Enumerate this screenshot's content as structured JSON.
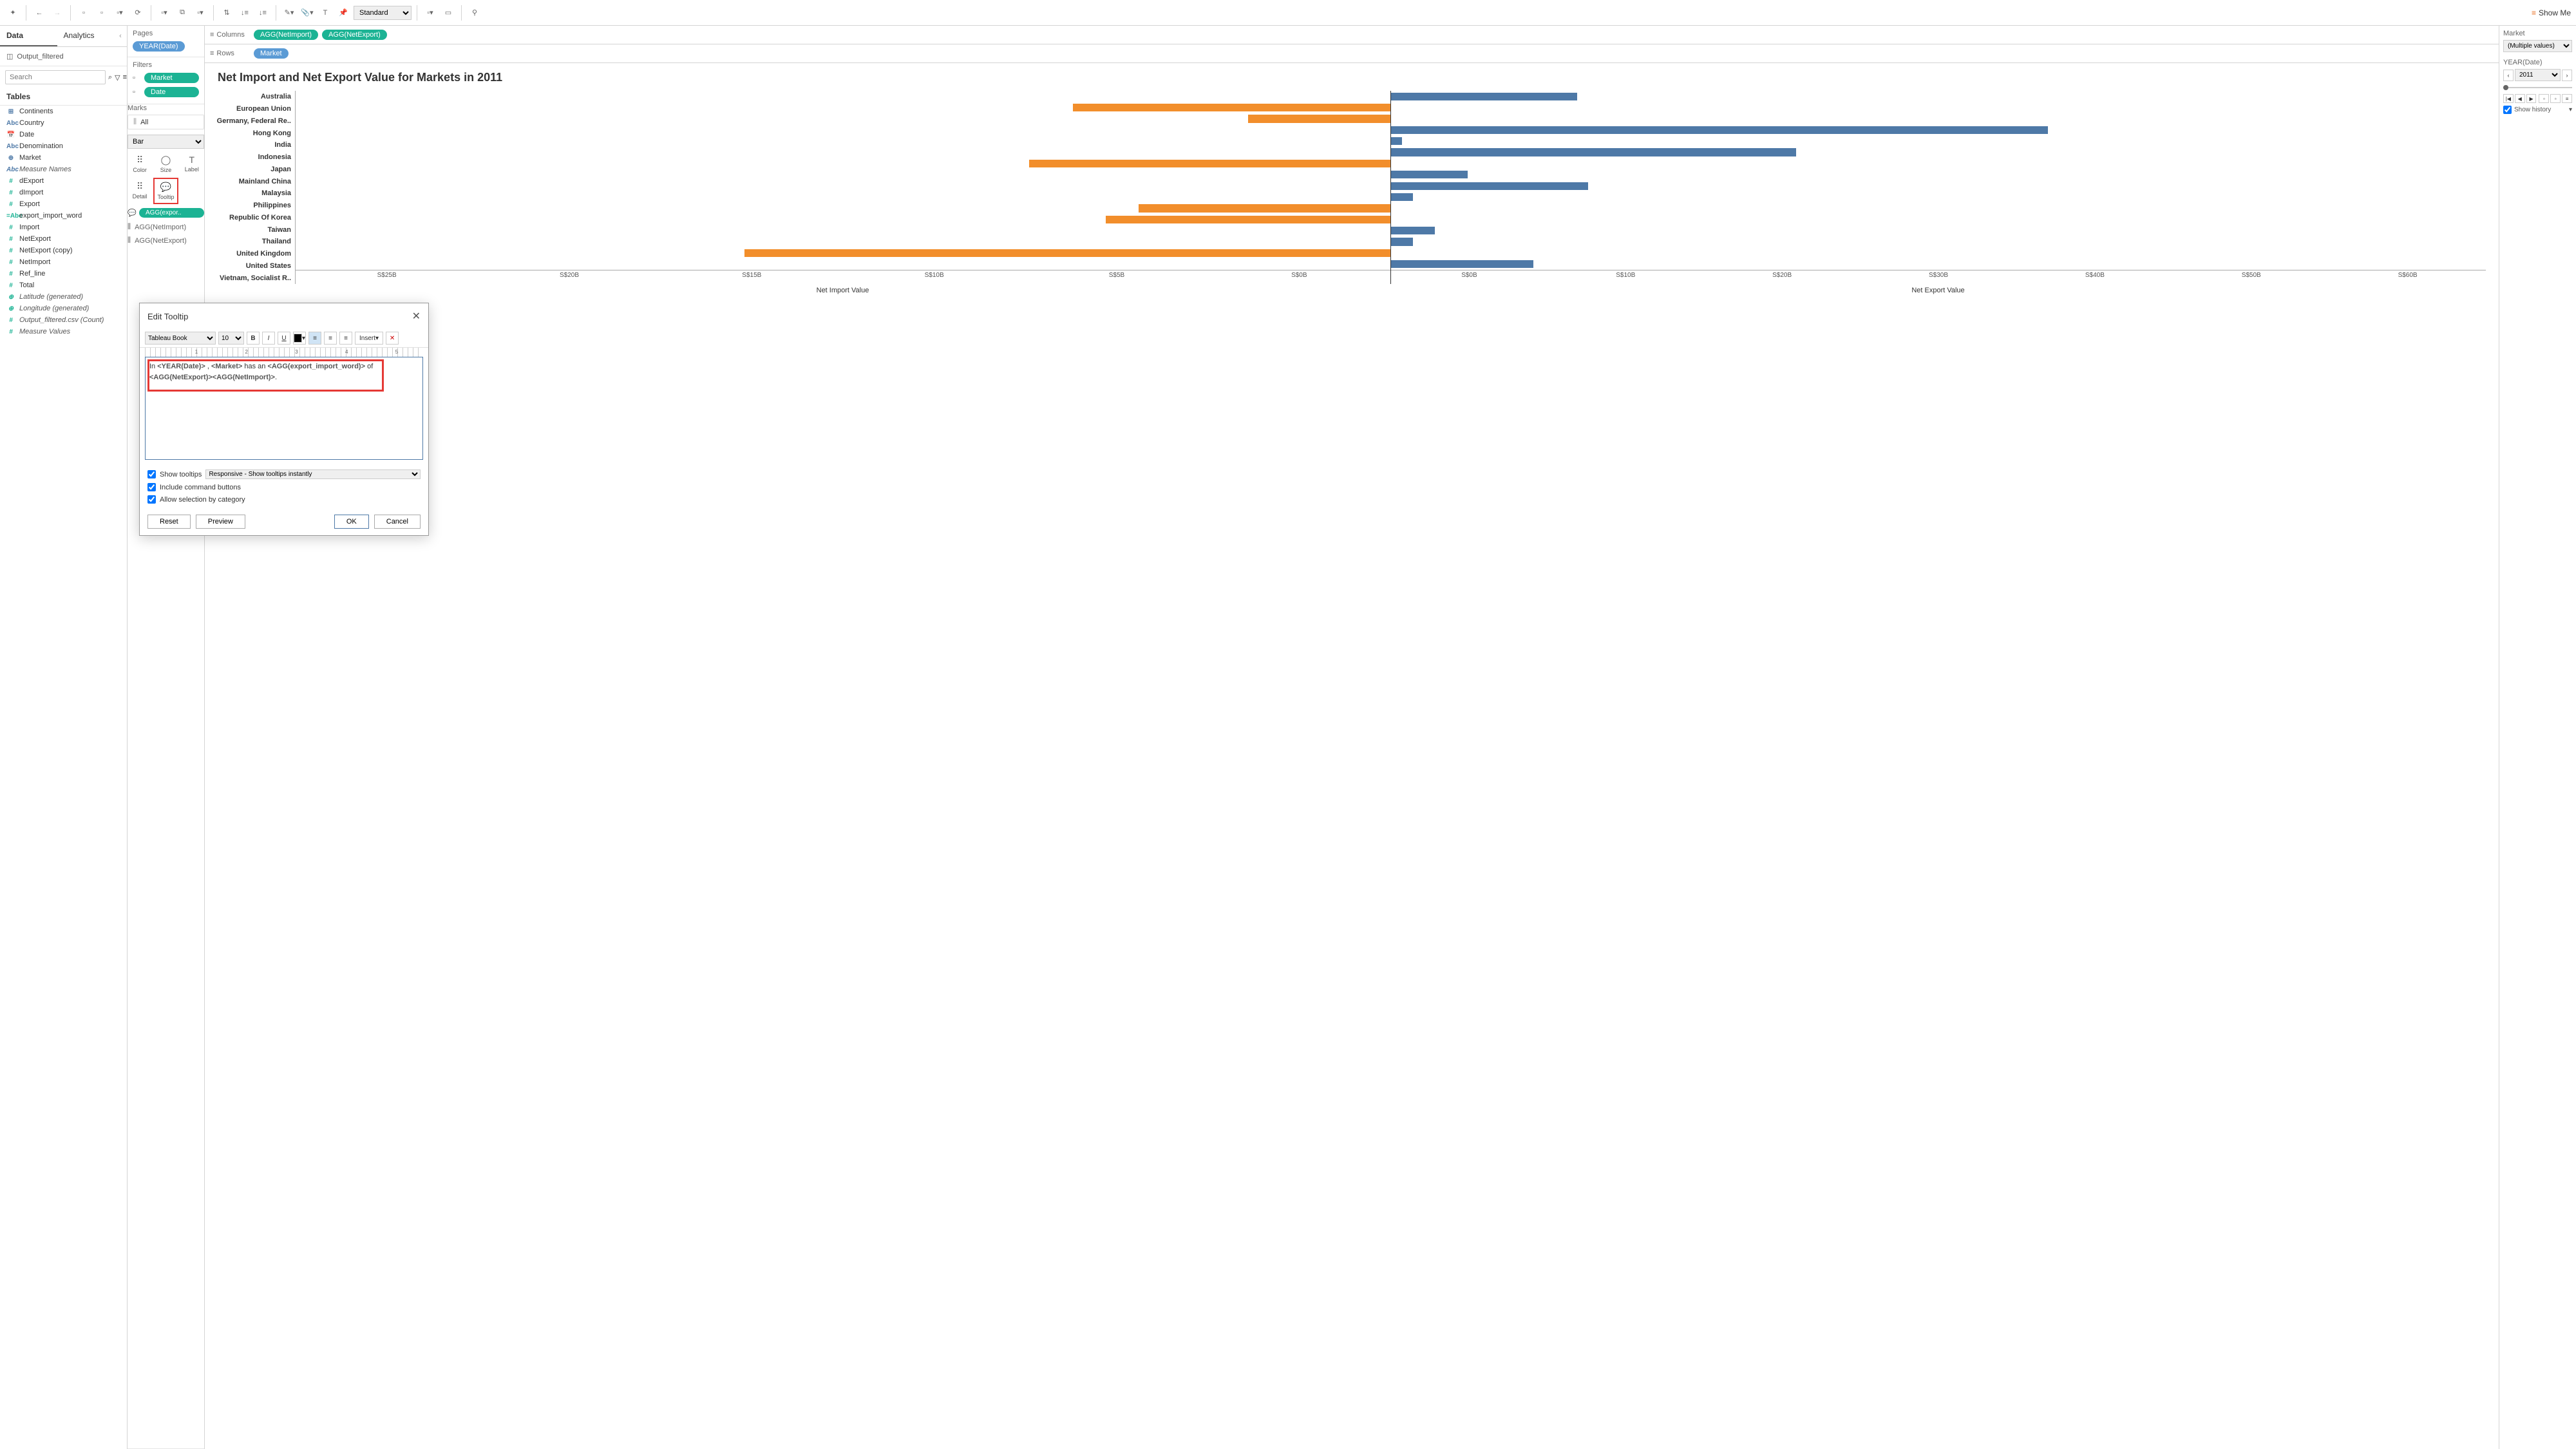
{
  "toolbar": {
    "fit_dropdown": "Standard",
    "showme_label": "Show Me"
  },
  "left_panel": {
    "tabs": {
      "data": "Data",
      "analytics": "Analytics"
    },
    "data_source": "Output_filtered",
    "search_placeholder": "Search",
    "tables_header": "Tables",
    "fields": [
      {
        "icon": "⊞",
        "color": "icon-blue",
        "label": "Continents"
      },
      {
        "icon": "Abc",
        "color": "icon-blue",
        "label": "Country"
      },
      {
        "icon": "📅",
        "color": "icon-blue",
        "label": "Date"
      },
      {
        "icon": "Abc",
        "color": "icon-blue",
        "label": "Denomination"
      },
      {
        "icon": "⊕",
        "color": "icon-blue",
        "label": "Market"
      },
      {
        "icon": "Abc",
        "color": "icon-blue",
        "label": "Measure Names",
        "italic": true
      },
      {
        "icon": "#",
        "color": "icon-teal",
        "label": "dExport"
      },
      {
        "icon": "#",
        "color": "icon-teal",
        "label": "dImport"
      },
      {
        "icon": "#",
        "color": "icon-teal",
        "label": "Export"
      },
      {
        "icon": "=Abc",
        "color": "icon-teal",
        "label": "export_import_word"
      },
      {
        "icon": "#",
        "color": "icon-teal",
        "label": "Import"
      },
      {
        "icon": "#",
        "color": "icon-teal",
        "label": "NetExport"
      },
      {
        "icon": "#",
        "color": "icon-teal",
        "label": "NetExport (copy)"
      },
      {
        "icon": "#",
        "color": "icon-teal",
        "label": "NetImport"
      },
      {
        "icon": "#",
        "color": "icon-teal",
        "label": "Ref_line"
      },
      {
        "icon": "#",
        "color": "icon-teal",
        "label": "Total"
      },
      {
        "icon": "⊕",
        "color": "icon-teal",
        "label": "Latitude (generated)",
        "italic": true
      },
      {
        "icon": "⊕",
        "color": "icon-teal",
        "label": "Longitude (generated)",
        "italic": true
      },
      {
        "icon": "#",
        "color": "icon-teal",
        "label": "Output_filtered.csv (Count)",
        "italic": true
      },
      {
        "icon": "#",
        "color": "icon-teal",
        "label": "Measure Values",
        "italic": true
      }
    ]
  },
  "shelves": {
    "pages_title": "Pages",
    "pages_pill": "YEAR(Date)",
    "filters_title": "Filters",
    "filters": [
      {
        "label": "Market",
        "cls": "pill-teal"
      },
      {
        "label": "Date",
        "cls": "pill-teal"
      }
    ],
    "marks_title": "Marks",
    "marks_all": "All",
    "marks_type": "Bar",
    "cells": [
      {
        "icon": "⠿",
        "label": "Color"
      },
      {
        "icon": "◯",
        "label": "Size"
      },
      {
        "icon": "T",
        "label": "Label"
      },
      {
        "icon": "⠿",
        "label": "Detail"
      },
      {
        "icon": "💬",
        "label": "Tooltip",
        "highlighted": true
      },
      {
        "icon": "",
        "label": ""
      }
    ],
    "marks_pill": "AGG(expor..",
    "agg_rows": [
      "AGG(NetImport)",
      "AGG(NetExport)"
    ]
  },
  "col_row": {
    "columns_label": "Columns",
    "rows_label": "Rows",
    "column_pills": [
      "AGG(NetImport)",
      "AGG(NetExport)"
    ],
    "row_pills": [
      "Market"
    ]
  },
  "viz": {
    "title": "Net Import and Net Export Value for Markets in  2011",
    "markets": [
      {
        "name": "Australia",
        "import": 0,
        "export": 17
      },
      {
        "name": "European Union",
        "import": 29,
        "export": 0
      },
      {
        "name": "Germany, Federal Re..",
        "import": 13,
        "export": 0
      },
      {
        "name": "Hong Kong",
        "import": 0,
        "export": 60
      },
      {
        "name": "India",
        "import": 0,
        "export": 1
      },
      {
        "name": "Indonesia",
        "import": 0,
        "export": 37
      },
      {
        "name": "Japan",
        "import": 33,
        "export": 0
      },
      {
        "name": "Mainland China",
        "import": 0,
        "export": 7
      },
      {
        "name": "Malaysia",
        "import": 0,
        "export": 18
      },
      {
        "name": "Philippines",
        "import": 0,
        "export": 2
      },
      {
        "name": "Republic Of Korea",
        "import": 23,
        "export": 0
      },
      {
        "name": "Taiwan",
        "import": 26,
        "export": 0
      },
      {
        "name": "Thailand",
        "import": 0,
        "export": 4
      },
      {
        "name": "United Kingdom",
        "import": 0,
        "export": 2
      },
      {
        "name": "United States",
        "import": 59,
        "export": 0
      },
      {
        "name": "Vietnam, Socialist R..",
        "import": 0,
        "export": 13
      }
    ],
    "import_ticks": [
      "S$25B",
      "S$20B",
      "S$15B",
      "S$10B",
      "S$5B",
      "S$0B"
    ],
    "export_ticks": [
      "S$0B",
      "S$10B",
      "S$20B",
      "S$30B",
      "S$40B",
      "S$50B",
      "S$60B"
    ],
    "import_axis_title": "Net Import Value",
    "export_axis_title": "Net Export Value",
    "colors": {
      "import": "#f28e2b",
      "export": "#4e79a7"
    }
  },
  "right_panel": {
    "market_title": "Market",
    "market_value": "(Multiple values)",
    "year_title": "YEAR(Date)",
    "year_value": "2011",
    "show_history": "Show history"
  },
  "dialog": {
    "title": "Edit Tooltip",
    "font": "Tableau Book",
    "size": "10",
    "insert": "Insert",
    "ruler_marks": [
      "1",
      "2",
      "3",
      "4",
      "5"
    ],
    "content_tokens": [
      {
        "t": "In ",
        "b": false
      },
      {
        "t": "<YEAR(Date)>",
        "b": true
      },
      {
        "t": " , ",
        "b": false
      },
      {
        "t": "<Market>",
        "b": true
      },
      {
        "t": " has an ",
        "b": false
      },
      {
        "t": "<AGG(export_import_word)>",
        "b": true
      },
      {
        "t": " of ",
        "b": false
      },
      {
        "t": "<AGG(NetExport)><AGG(NetImport)>",
        "b": true
      },
      {
        "t": ".",
        "b": false
      }
    ],
    "opt_show_tooltips": "Show tooltips",
    "opt_responsive": "Responsive - Show tooltips instantly",
    "opt_include_buttons": "Include command buttons",
    "opt_allow_selection": "Allow selection by category",
    "btn_reset": "Reset",
    "btn_preview": "Preview",
    "btn_ok": "OK",
    "btn_cancel": "Cancel"
  }
}
